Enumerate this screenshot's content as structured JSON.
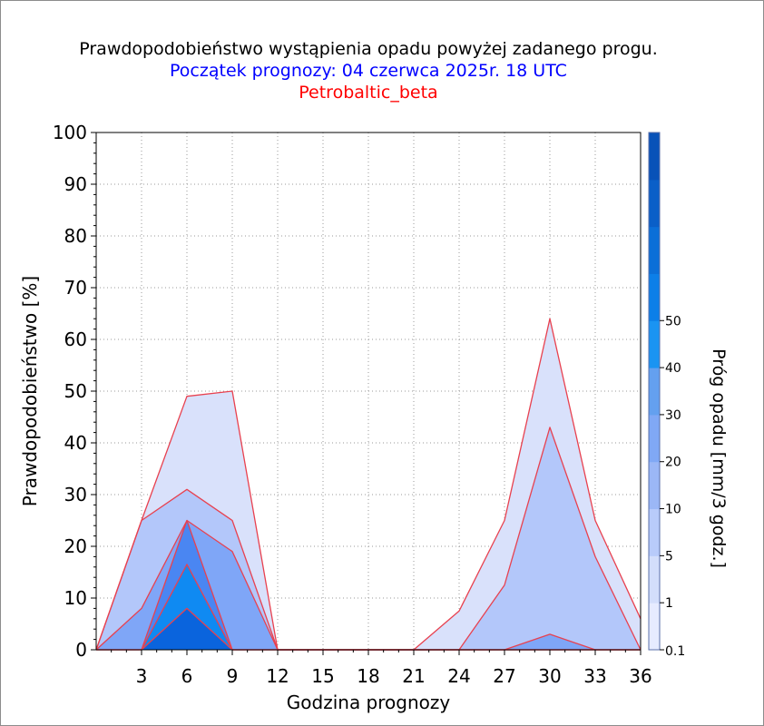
{
  "chart_data": {
    "type": "area",
    "title": "Prawdopodobieństwo wystąpienia opadu powyżej zadanego progu.",
    "subtitle": "Początek prognozy: 04 czerwca 2025r. 18 UTC",
    "subtitle2": "Petrobaltic_beta",
    "xlabel": "Godzina prognozy",
    "ylabel": "Prawdopodobieństwo [%]",
    "colorbar_label": "Próg opadu [mm/3 godz.]",
    "xlim": [
      0,
      36
    ],
    "ylim": [
      0,
      100
    ],
    "x_ticks": [
      3,
      6,
      9,
      12,
      15,
      18,
      21,
      24,
      27,
      30,
      33,
      36
    ],
    "y_ticks": [
      0,
      10,
      20,
      30,
      40,
      50,
      60,
      70,
      80,
      90,
      100
    ],
    "grid": true,
    "x": [
      0,
      3,
      6,
      9,
      12,
      15,
      18,
      21,
      24,
      27,
      30,
      33,
      36
    ],
    "series": [
      {
        "threshold": "0.1",
        "color": "#d9e1fb",
        "values": [
          0,
          25,
          49,
          50,
          0,
          0,
          0,
          0,
          7.5,
          25,
          64,
          25,
          6
        ]
      },
      {
        "threshold": "1",
        "color": "#b3c7fa",
        "values": [
          0,
          25,
          31,
          25,
          0,
          0,
          0,
          0,
          0,
          12.5,
          43,
          18,
          0
        ]
      },
      {
        "threshold": "5",
        "color": "#7fa6f7",
        "values": [
          0,
          8,
          25,
          19,
          0,
          0,
          0,
          0,
          0,
          0,
          3,
          0,
          0
        ]
      },
      {
        "threshold": "10",
        "color": "#4a86f2",
        "values": [
          0,
          0,
          25,
          0,
          0,
          0,
          0,
          0,
          0,
          0,
          0,
          0,
          0
        ]
      },
      {
        "threshold": "20",
        "color": "#0f8af2",
        "values": [
          0,
          0,
          16.5,
          0,
          0,
          0,
          0,
          0,
          0,
          0,
          0,
          0,
          0
        ]
      },
      {
        "threshold": "30",
        "color": "#0a64dd",
        "values": [
          0,
          0,
          8,
          0,
          0,
          0,
          0,
          0,
          0,
          0,
          0,
          0,
          0
        ]
      }
    ],
    "colorbar": {
      "labels": [
        "0.1",
        "1",
        "5",
        "10",
        "20",
        "30",
        "40",
        "50"
      ],
      "colors": [
        "#e6ebff",
        "#d3defb",
        "#b8cbfa",
        "#9bb7f6",
        "#80a8f5",
        "#64a0ef",
        "#1a94f2",
        "#0c7fe8",
        "#0b6fd8",
        "#0a5fc8",
        "#0852b8"
      ]
    },
    "outline_color": "#e8414f"
  }
}
